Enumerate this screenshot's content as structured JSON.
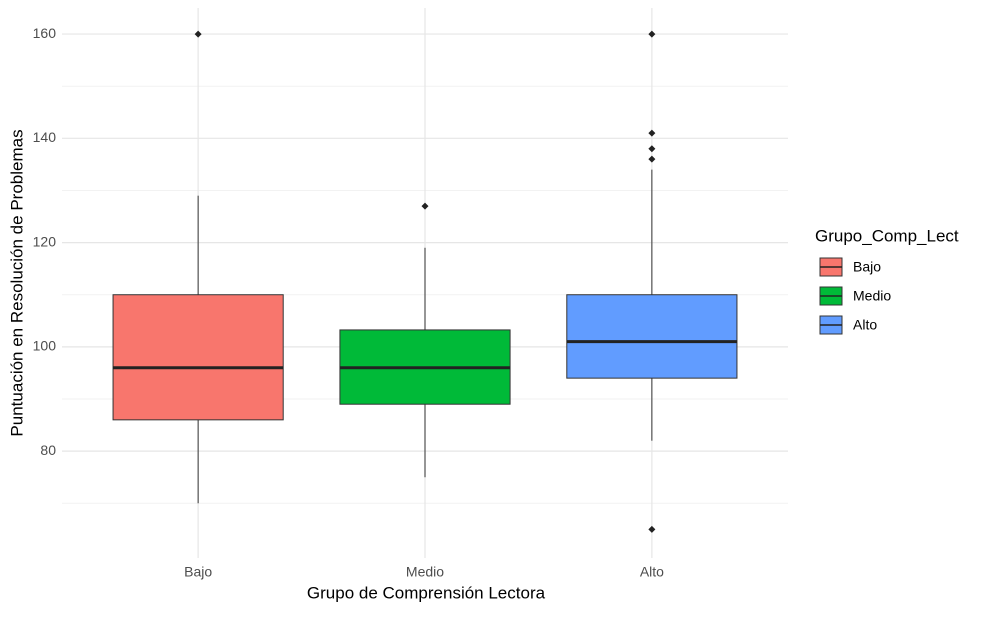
{
  "chart_data": {
    "type": "boxplot",
    "x_label": "Grupo de Comprensión Lectora",
    "y_label": "Puntuación en Resolución de Problemas",
    "legend_title": "Grupo_Comp_Lect",
    "categories": [
      "Bajo",
      "Medio",
      "Alto"
    ],
    "colors": [
      "#f8766d",
      "#00ba38",
      "#619cff"
    ],
    "boxes": [
      {
        "whisker_low": 70,
        "q1": 86,
        "median": 96,
        "q3": 110,
        "whisker_high": 129,
        "outliers": [
          160
        ]
      },
      {
        "whisker_low": 75,
        "q1": 89,
        "median": 96,
        "q3": 103.25,
        "whisker_high": 119,
        "outliers": [
          127
        ]
      },
      {
        "whisker_low": 82,
        "q1": 94,
        "median": 101,
        "q3": 110,
        "whisker_high": 134,
        "outliers": [
          160,
          141,
          138,
          136,
          65
        ]
      }
    ],
    "ylim": [
      59.5,
      165
    ],
    "yticks": [
      80,
      100,
      120,
      140,
      160
    ],
    "minor_yticks": [
      70,
      90,
      110,
      130,
      150
    ],
    "grid": true
  }
}
